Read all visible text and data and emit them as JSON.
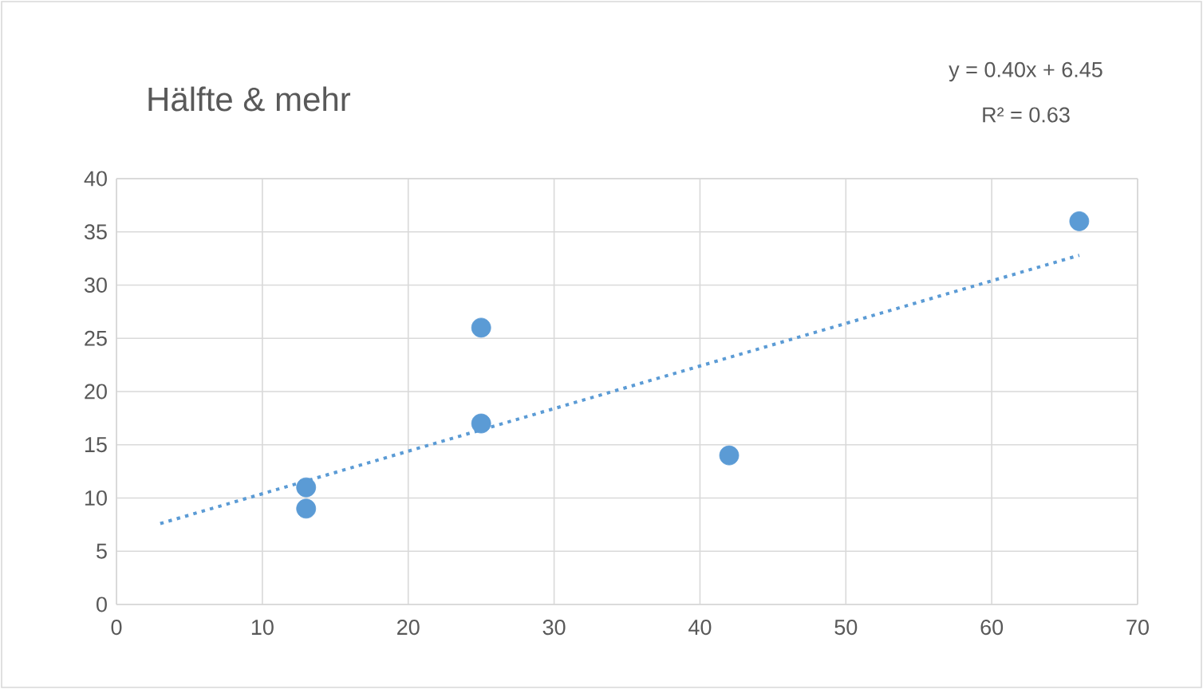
{
  "chart_data": {
    "type": "scatter",
    "title": "Hälfte & mehr",
    "annotations": [
      "y = 0.40x + 6.45",
      "R² = 0.63"
    ],
    "series": [
      {
        "color": "#5b9bd5",
        "marker": "circle",
        "x": [
          13,
          13,
          25,
          25,
          42,
          66
        ],
        "values": [
          11,
          9,
          17,
          26,
          14,
          36
        ]
      },
      {
        "type": "line",
        "color": "#5b9bd5",
        "line_style": "dotted",
        "marker": "none",
        "x": [
          3,
          66
        ],
        "values": [
          7.6,
          32.8
        ]
      }
    ],
    "xlim": [
      0,
      70
    ],
    "xticks": [
      0,
      10,
      20,
      30,
      40,
      50,
      60,
      70
    ],
    "ylim": [
      0,
      40
    ],
    "yticks": [
      0,
      5,
      10,
      15,
      20,
      25,
      30,
      35,
      40
    ],
    "grid": true
  }
}
